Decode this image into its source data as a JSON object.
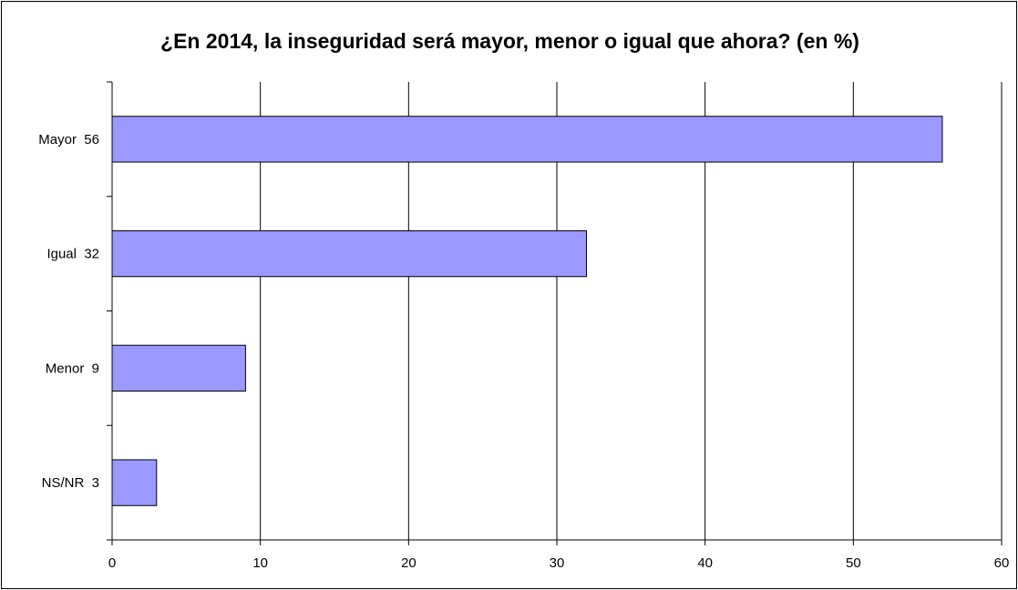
{
  "chart_data": {
    "type": "bar",
    "orientation": "horizontal",
    "title": "¿En 2014, la inseguridad será mayor, menor o igual que ahora? (en %)",
    "categories": [
      "Mayor  56",
      "Igual  32",
      "Menor  9",
      "NS/NR  3"
    ],
    "values": [
      56,
      32,
      9,
      3
    ],
    "xlim": [
      0,
      60
    ],
    "x_ticks": [
      "0",
      "10",
      "20",
      "30",
      "40",
      "50",
      "60"
    ],
    "grid": "vertical",
    "legend": "none",
    "colors": {
      "bar_fill": "#9999ff",
      "bar_stroke": "#000000",
      "grid": "#000000"
    }
  }
}
